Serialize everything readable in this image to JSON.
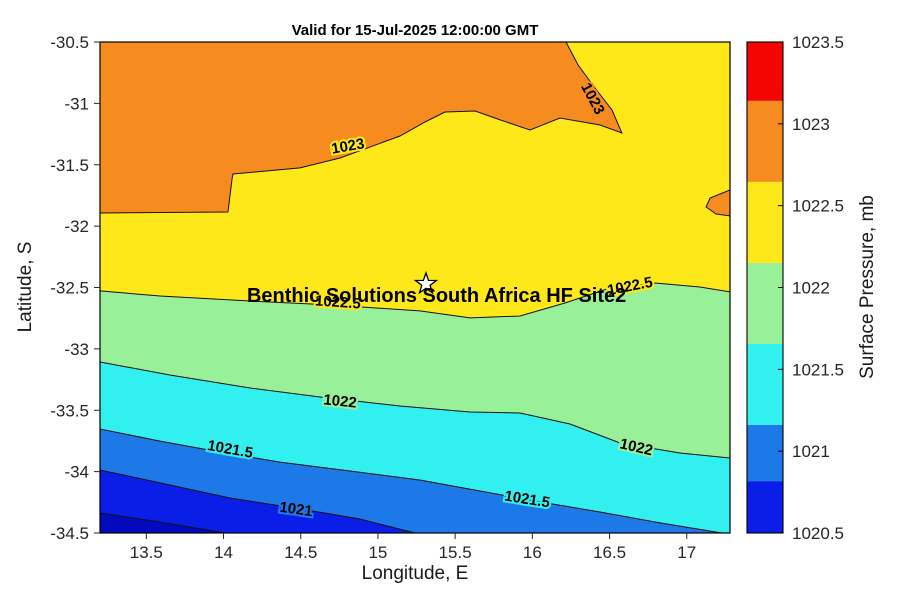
{
  "chart_data": {
    "type": "contour",
    "title": "Valid for 15-Jul-2025 12:00:00 GMT",
    "xlabel": "Longitude, E",
    "ylabel": "Latitude, S",
    "xlim": [
      13.2,
      17.28
    ],
    "ylim": [
      -34.5,
      -30.5
    ],
    "xticks": [
      13.5,
      14,
      14.5,
      15,
      15.5,
      16,
      16.5,
      17
    ],
    "xtick_labels": [
      "13.5",
      "14",
      "14.5",
      "15",
      "15.5",
      "16",
      "16.5",
      "17"
    ],
    "yticks": [
      -30.5,
      -31,
      -31.5,
      -32,
      -32.5,
      -33,
      -33.5,
      -34,
      -34.5
    ],
    "ytick_labels": [
      "-30.5",
      "-31",
      "-31.5",
      "-32",
      "-32.5",
      "-33",
      "-33.5",
      "-34",
      "-34.5"
    ],
    "grid": false,
    "levels": [
      1020.5,
      1021,
      1021.5,
      1022,
      1022.5,
      1023,
      1023.5
    ],
    "line_color": "#111111",
    "colorbar": {
      "label": "Surface Pressure, mb",
      "tick_labels": [
        "1023.5",
        "1023",
        "1022.5",
        "1022",
        "1021.5",
        "1021",
        "1020.5"
      ],
      "segments": [
        {
          "color": "#f60400",
          "from": 0.0,
          "to": 0.12
        },
        {
          "color": "#f68b1f",
          "from": 0.12,
          "to": 0.285
        },
        {
          "color": "#fee819",
          "from": 0.285,
          "to": 0.45
        },
        {
          "color": "#98f098",
          "from": 0.45,
          "to": 0.615
        },
        {
          "color": "#33f0f0",
          "from": 0.615,
          "to": 0.78
        },
        {
          "color": "#1d79e8",
          "from": 0.78,
          "to": 0.895
        },
        {
          "color": "#0a1ee8",
          "from": 0.895,
          "to": 1.0
        }
      ]
    },
    "regions": [
      {
        "name": "band-1022.5-1023",
        "range": "1022.5-1023",
        "color": "#fee819",
        "points": [
          [
            13.2,
            -30.5
          ],
          [
            17.28,
            -30.5
          ],
          [
            17.28,
            -34.5
          ],
          [
            13.2,
            -34.5
          ]
        ]
      },
      {
        "name": "band-1022-1022.5",
        "range": "1022-1022.5",
        "color": "#98f098",
        "points": [
          [
            13.2,
            -32.528
          ],
          [
            13.589,
            -32.569
          ],
          [
            14.172,
            -32.61
          ],
          [
            14.689,
            -32.642
          ],
          [
            15.272,
            -32.691
          ],
          [
            15.596,
            -32.748
          ],
          [
            15.92,
            -32.732
          ],
          [
            16.211,
            -32.626
          ],
          [
            16.503,
            -32.504
          ],
          [
            16.794,
            -32.463
          ],
          [
            17.085,
            -32.496
          ],
          [
            17.28,
            -32.536
          ],
          [
            17.28,
            -34.5
          ],
          [
            13.2,
            -34.5
          ]
        ]
      },
      {
        "name": "band-1021.5-1022",
        "range": "1021.5-1022",
        "color": "#33f0f0",
        "points": [
          [
            13.2,
            -33.107
          ],
          [
            13.653,
            -33.213
          ],
          [
            14.172,
            -33.319
          ],
          [
            14.625,
            -33.392
          ],
          [
            15.143,
            -33.465
          ],
          [
            15.596,
            -33.514
          ],
          [
            15.92,
            -33.522
          ],
          [
            16.244,
            -33.612
          ],
          [
            16.568,
            -33.767
          ],
          [
            16.956,
            -33.848
          ],
          [
            17.28,
            -33.889
          ],
          [
            17.28,
            -34.5
          ],
          [
            13.2,
            -34.5
          ]
        ]
      },
      {
        "name": "band-1021-1021.5",
        "range": "1021-1021.5",
        "color": "#1d79e8",
        "points": [
          [
            13.2,
            -33.653
          ],
          [
            13.589,
            -33.751
          ],
          [
            13.977,
            -33.84
          ],
          [
            14.366,
            -33.922
          ],
          [
            14.819,
            -33.995
          ],
          [
            15.272,
            -34.068
          ],
          [
            15.661,
            -34.158
          ],
          [
            16.049,
            -34.247
          ],
          [
            16.438,
            -34.329
          ],
          [
            16.827,
            -34.418
          ],
          [
            17.228,
            -34.5
          ],
          [
            13.2,
            -34.5
          ]
        ]
      },
      {
        "name": "band-1020.5-1021",
        "range": "1020.5-1021",
        "color": "#0a1ee8",
        "points": [
          [
            13.2,
            -33.987
          ],
          [
            13.589,
            -34.092
          ],
          [
            14.042,
            -34.215
          ],
          [
            14.495,
            -34.304
          ],
          [
            14.884,
            -34.386
          ],
          [
            15.24,
            -34.5
          ],
          [
            13.2,
            -34.5
          ]
        ]
      },
      {
        "name": "band-below-1020.5",
        "range": "<1020.5",
        "color": "#0309bd",
        "points": [
          [
            13.2,
            -34.337
          ],
          [
            13.589,
            -34.41
          ],
          [
            14.01,
            -34.5
          ],
          [
            13.2,
            -34.5
          ]
        ]
      },
      {
        "name": "band-above-1023",
        "range": ">1023",
        "color": "#f68b1f",
        "points": [
          [
            13.2,
            -31.893
          ],
          [
            14.029,
            -31.885
          ],
          [
            14.055,
            -31.62
          ],
          [
            14.061,
            -31.575
          ],
          [
            14.495,
            -31.526
          ],
          [
            14.754,
            -31.445
          ],
          [
            15.143,
            -31.266
          ],
          [
            15.305,
            -31.152
          ],
          [
            15.434,
            -31.07
          ],
          [
            15.629,
            -31.062
          ],
          [
            15.791,
            -31.135
          ],
          [
            15.985,
            -31.217
          ],
          [
            16.179,
            -31.119
          ],
          [
            16.438,
            -31.176
          ],
          [
            16.58,
            -31.241
          ],
          [
            16.516,
            -31.054
          ],
          [
            16.406,
            -30.875
          ],
          [
            16.296,
            -30.687
          ],
          [
            16.218,
            -30.5
          ],
          [
            13.2,
            -30.5
          ]
        ]
      },
      {
        "name": "band-above-1023-east-blob",
        "range": ">1023",
        "color": "#f68b1f",
        "points": [
          [
            17.28,
            -31.706
          ],
          [
            17.151,
            -31.771
          ],
          [
            17.125,
            -31.844
          ],
          [
            17.19,
            -31.901
          ],
          [
            17.28,
            -31.917
          ]
        ]
      }
    ],
    "contour_lines": [
      {
        "level": "1023",
        "points": [
          [
            13.2,
            -31.893
          ],
          [
            14.029,
            -31.885
          ],
          [
            14.055,
            -31.62
          ],
          [
            14.061,
            -31.575
          ],
          [
            14.495,
            -31.526
          ],
          [
            14.754,
            -31.445
          ],
          [
            15.143,
            -31.266
          ],
          [
            15.305,
            -31.152
          ],
          [
            15.434,
            -31.07
          ],
          [
            15.629,
            -31.062
          ],
          [
            15.791,
            -31.135
          ],
          [
            15.985,
            -31.217
          ],
          [
            16.179,
            -31.119
          ],
          [
            16.438,
            -31.176
          ],
          [
            16.58,
            -31.241
          ],
          [
            16.516,
            -31.054
          ],
          [
            16.406,
            -30.875
          ],
          [
            16.296,
            -30.687
          ],
          [
            16.218,
            -30.5
          ]
        ]
      },
      {
        "level": "1023-blob",
        "points": [
          [
            17.28,
            -31.706
          ],
          [
            17.151,
            -31.771
          ],
          [
            17.125,
            -31.844
          ],
          [
            17.19,
            -31.901
          ],
          [
            17.28,
            -31.917
          ]
        ]
      },
      {
        "level": "1022.5",
        "points": [
          [
            13.2,
            -32.528
          ],
          [
            13.589,
            -32.569
          ],
          [
            14.172,
            -32.61
          ],
          [
            14.689,
            -32.642
          ],
          [
            15.272,
            -32.691
          ],
          [
            15.596,
            -32.748
          ],
          [
            15.92,
            -32.732
          ],
          [
            16.211,
            -32.626
          ],
          [
            16.503,
            -32.504
          ],
          [
            16.794,
            -32.463
          ],
          [
            17.085,
            -32.496
          ],
          [
            17.28,
            -32.536
          ]
        ]
      },
      {
        "level": "1022",
        "points": [
          [
            13.2,
            -33.107
          ],
          [
            13.653,
            -33.213
          ],
          [
            14.172,
            -33.319
          ],
          [
            14.625,
            -33.392
          ],
          [
            15.143,
            -33.465
          ],
          [
            15.596,
            -33.514
          ],
          [
            15.92,
            -33.522
          ],
          [
            16.244,
            -33.612
          ],
          [
            16.568,
            -33.767
          ],
          [
            16.956,
            -33.848
          ],
          [
            17.28,
            -33.889
          ]
        ]
      },
      {
        "level": "1021.5",
        "points": [
          [
            13.2,
            -33.653
          ],
          [
            13.589,
            -33.751
          ],
          [
            13.977,
            -33.84
          ],
          [
            14.366,
            -33.922
          ],
          [
            14.819,
            -33.995
          ],
          [
            15.272,
            -34.068
          ],
          [
            15.661,
            -34.158
          ],
          [
            16.049,
            -34.247
          ],
          [
            16.438,
            -34.329
          ],
          [
            16.827,
            -34.418
          ],
          [
            17.228,
            -34.5
          ]
        ]
      },
      {
        "level": "1021",
        "points": [
          [
            13.2,
            -33.987
          ],
          [
            13.589,
            -34.092
          ],
          [
            14.042,
            -34.215
          ],
          [
            14.495,
            -34.304
          ],
          [
            14.884,
            -34.386
          ],
          [
            15.24,
            -34.5
          ]
        ]
      },
      {
        "level": "1020.5",
        "points": [
          [
            13.2,
            -34.337
          ],
          [
            13.589,
            -34.41
          ],
          [
            14.01,
            -34.5
          ]
        ]
      }
    ],
    "contour_labels": [
      {
        "text": "1023",
        "lon": 14.806,
        "lat": -31.355,
        "rot": -10,
        "halo": "#fee819"
      },
      {
        "text": "1023",
        "lon": 16.387,
        "lat": -30.964,
        "rot": 62,
        "halo": "#f68b1f"
      },
      {
        "text": "1022.5",
        "lon": 14.741,
        "lat": -32.626,
        "rot": 4,
        "halo": "#fee819"
      },
      {
        "text": "1022.5",
        "lon": 16.633,
        "lat": -32.496,
        "rot": -11,
        "halo": "#fee819"
      },
      {
        "text": "1022",
        "lon": 14.754,
        "lat": -33.433,
        "rot": 6,
        "halo": "#98f098"
      },
      {
        "text": "1022",
        "lon": 16.672,
        "lat": -33.807,
        "rot": 13,
        "halo": "#98f098"
      },
      {
        "text": "1021.5",
        "lon": 14.042,
        "lat": -33.824,
        "rot": 10,
        "halo": "#33f0f0"
      },
      {
        "text": "1021.5",
        "lon": 15.966,
        "lat": -34.231,
        "rot": 9,
        "halo": "#33f0f0"
      },
      {
        "text": "1021",
        "lon": 14.469,
        "lat": -34.313,
        "rot": 8,
        "halo": "#1d79e8"
      }
    ],
    "marker": {
      "shape": "pentagram",
      "lon": 15.311,
      "lat": -32.471,
      "label": "Benthic Solutions South Africa HF Site2",
      "label_lon": 15.38,
      "label_lat": -32.575
    }
  }
}
